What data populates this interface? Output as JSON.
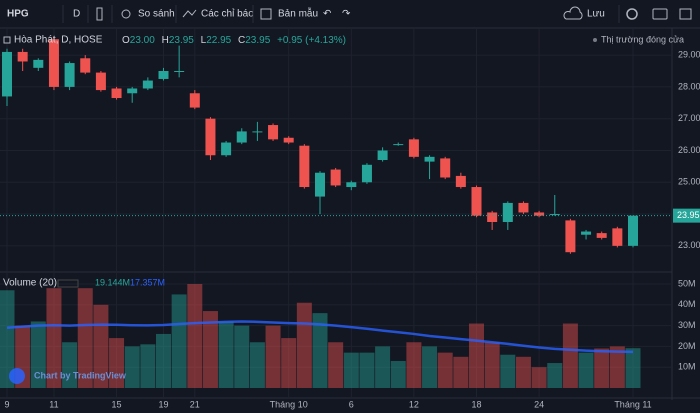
{
  "toolbar": {
    "symbol": "HPG",
    "interval": "D",
    "compare": "So sánh",
    "indicators": "Các chỉ báo",
    "templates": "Bản mẫu",
    "save": "Lưu"
  },
  "legend": {
    "name": "Hòa Phát, D, HOSE",
    "o_label": "O",
    "o": "23.00",
    "h_label": "H",
    "h": "23.95",
    "l_label": "L",
    "l": "22.95",
    "c_label": "C",
    "c": "23.95",
    "change": "+0.95 (+4.13%)",
    "market_status": "Thị trường đóng cửa"
  },
  "price_label": "23.95",
  "volume_legend": {
    "name": "Volume (20)",
    "last": "19.144M",
    "ma": "17.357M"
  },
  "watermark": "Chart by TradingView",
  "chart_data": {
    "type": "candlestick",
    "categories": [
      "9",
      null,
      null,
      "11",
      null,
      null,
      null,
      "15",
      null,
      null,
      "19",
      null,
      "21",
      null,
      null,
      null,
      null,
      null,
      "Tháng 10",
      null,
      null,
      null,
      "6",
      null,
      null,
      null,
      "12",
      null,
      null,
      null,
      "18",
      null,
      null,
      null,
      "24",
      null,
      null,
      null,
      null,
      null,
      "Tháng 11"
    ],
    "open": [
      27.7,
      29.1,
      28.6,
      29.5,
      28.0,
      28.9,
      28.45,
      27.95,
      27.8,
      27.95,
      28.25,
      28.5,
      27.8,
      27.0,
      25.85,
      26.25,
      26.6,
      26.8,
      26.4,
      26.15,
      24.55,
      25.4,
      24.85,
      25.0,
      25.7,
      26.2,
      26.35,
      25.65,
      25.75,
      25.2,
      24.85,
      24.05,
      23.75,
      24.35,
      24.05,
      24.0,
      23.8,
      23.35,
      23.4,
      23.55,
      23.0
    ],
    "high": [
      29.2,
      29.2,
      28.9,
      29.6,
      28.8,
      29.0,
      28.5,
      28.0,
      28.0,
      28.3,
      28.6,
      29.3,
      27.9,
      27.05,
      26.3,
      26.7,
      26.9,
      26.85,
      26.45,
      26.2,
      25.35,
      25.45,
      25.05,
      25.6,
      26.1,
      26.25,
      26.4,
      25.85,
      25.8,
      25.3,
      24.9,
      24.1,
      24.4,
      24.4,
      24.1,
      24.6,
      23.85,
      23.5,
      23.45,
      23.6,
      23.95
    ],
    "low": [
      27.4,
      28.5,
      28.5,
      27.9,
      27.9,
      28.4,
      27.85,
      27.6,
      27.5,
      27.9,
      28.2,
      28.3,
      27.3,
      25.7,
      25.8,
      26.2,
      26.3,
      26.3,
      26.2,
      24.8,
      24.0,
      24.85,
      24.75,
      24.95,
      25.65,
      26.15,
      25.75,
      25.1,
      25.1,
      24.8,
      23.9,
      23.5,
      23.5,
      24.0,
      23.9,
      23.95,
      22.75,
      23.2,
      23.2,
      22.95,
      22.95
    ],
    "close": [
      29.1,
      28.8,
      28.85,
      28.0,
      28.75,
      28.45,
      27.9,
      27.65,
      27.95,
      28.2,
      28.5,
      28.5,
      27.35,
      25.85,
      26.25,
      26.6,
      26.6,
      26.35,
      26.25,
      24.85,
      25.3,
      24.9,
      25.0,
      25.55,
      26.0,
      26.2,
      25.8,
      25.8,
      25.15,
      24.85,
      23.95,
      23.75,
      24.35,
      24.05,
      23.95,
      24.0,
      22.8,
      23.45,
      23.25,
      23.0,
      23.95
    ],
    "up_color": "#26a69a",
    "down_color": "#ef5350",
    "ylim": [
      22.24,
      29.79
    ],
    "yticks": [
      {
        "value": 23,
        "label": "23.00"
      },
      {
        "value": 24,
        "label": "24.00"
      },
      {
        "value": 25,
        "label": "25.00"
      },
      {
        "value": 26,
        "label": "26.00"
      },
      {
        "value": 27,
        "label": "27.00"
      },
      {
        "value": 28,
        "label": "28.00"
      },
      {
        "value": 29,
        "label": "29.00"
      }
    ],
    "volume": {
      "values": [
        47,
        30,
        32,
        48,
        22,
        48,
        40,
        24,
        20,
        21,
        26,
        45,
        50,
        37,
        32,
        30,
        22,
        30,
        24,
        41,
        36,
        22,
        17,
        17,
        20,
        13,
        22,
        20,
        17,
        15,
        31,
        22,
        16,
        15,
        10,
        12,
        31,
        17,
        19,
        20,
        19.144
      ],
      "ma": [
        29,
        29.5,
        30,
        30.2,
        30,
        30.3,
        30.5,
        30.4,
        30.2,
        30.1,
        30.3,
        30.8,
        31.2,
        31.5,
        31.8,
        32,
        31.8,
        31.5,
        31.2,
        31,
        30.6,
        30,
        29.3,
        28.5,
        27.6,
        26.8,
        26,
        25,
        24.3,
        23.5,
        22.8,
        22,
        21.2,
        20.3,
        19.5,
        18.8,
        18.4,
        18,
        17.7,
        17.5,
        17.357
      ],
      "ma_color": "#2962ff",
      "vlim": [
        0,
        52.9
      ],
      "vticks": [
        {
          "value": 10,
          "label": "10M"
        },
        {
          "value": 20,
          "label": "20M"
        },
        {
          "value": 30,
          "label": "30M"
        },
        {
          "value": 40,
          "label": "40M"
        },
        {
          "value": 50,
          "label": "50M"
        }
      ]
    },
    "grid": true
  }
}
